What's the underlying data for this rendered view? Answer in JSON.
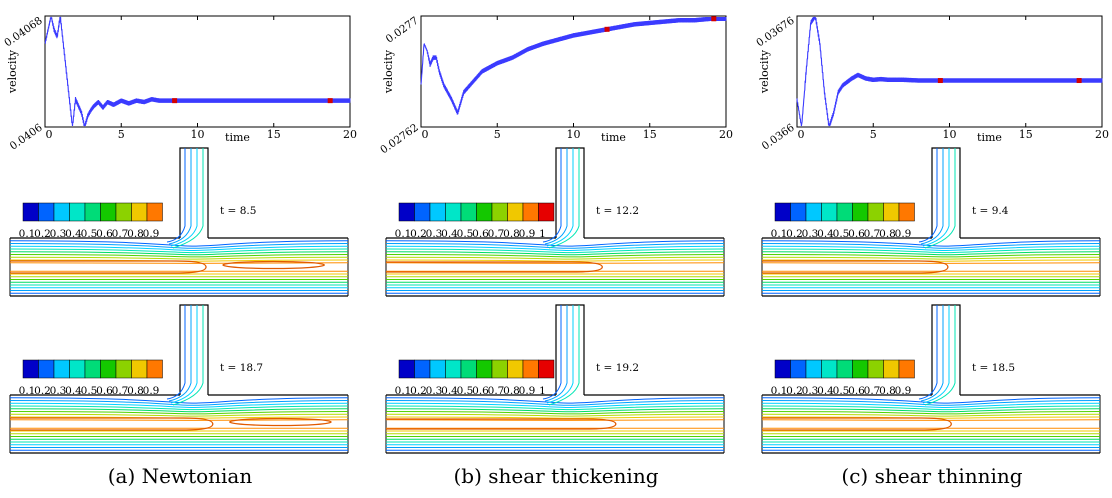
{
  "chart_data": [
    {
      "type": "line",
      "panel": "a",
      "caption": "(a) Newtonian",
      "xlabel": "time",
      "ylabel": "velocity",
      "xlim": [
        0,
        20
      ],
      "ylim": [
        0.0406,
        0.04068
      ],
      "xticks": [
        0,
        5,
        10,
        15,
        20
      ],
      "ytick_labels": [
        "0.04068",
        "0.0406"
      ],
      "series": [
        {
          "x": [
            0,
            0.2,
            0.4,
            0.6,
            0.8,
            1.0,
            1.2,
            1.4,
            1.6,
            1.8,
            2.0,
            2.2,
            2.4,
            2.6,
            2.8,
            3.0,
            3.2,
            3.5,
            3.8,
            4.1,
            4.5,
            5.0,
            5.5,
            6.0,
            6.5,
            7.0,
            7.5,
            8.0,
            9.0,
            10,
            12,
            14,
            16,
            18,
            20
          ],
          "y": [
            0.04066,
            0.04067,
            0.04068,
            0.04067,
            0.040665,
            0.04068,
            0.04066,
            0.04064,
            0.04062,
            0.0406,
            0.04062,
            0.040615,
            0.04061,
            0.0406,
            0.040608,
            0.040612,
            0.040615,
            0.040618,
            0.040614,
            0.040618,
            0.040616,
            0.040619,
            0.040617,
            0.040619,
            0.040618,
            0.04062,
            0.040619,
            0.040619,
            0.040619,
            0.040619,
            0.040619,
            0.040619,
            0.040619,
            0.040619,
            0.040619
          ]
        }
      ],
      "markers": [
        {
          "x": 8.5
        },
        {
          "x": 18.7
        }
      ],
      "snapshots": [
        {
          "t_label": "t = 8.5",
          "scale": [
            "0.1",
            "0.2",
            "0.3",
            "0.4",
            "0.5",
            "0.6",
            "0.7",
            "0.8",
            "0.9"
          ],
          "loops": [
            {
              "type": "left",
              "x_end": 0.58,
              "dy": 6
            },
            {
              "type": "right",
              "x0": 0.63,
              "x1": 0.93,
              "dy": 5
            }
          ]
        },
        {
          "t_label": "t = 18.7",
          "scale": [
            "0.1",
            "0.2",
            "0.3",
            "0.4",
            "0.5",
            "0.6",
            "0.7",
            "0.8",
            "0.9"
          ],
          "loops": [
            {
              "type": "left",
              "x_end": 0.6,
              "dy": 6
            },
            {
              "type": "right",
              "x0": 0.65,
              "x1": 0.95,
              "dy": 5
            }
          ]
        }
      ]
    },
    {
      "type": "line",
      "panel": "b",
      "caption": "(b) shear thickening",
      "xlabel": "time",
      "ylabel": "velocity",
      "xlim": [
        0,
        20
      ],
      "ylim": [
        0.02762,
        0.0277
      ],
      "xticks": [
        0,
        5,
        10,
        15,
        20
      ],
      "ytick_labels": [
        "0.0277",
        "0.02762"
      ],
      "series": [
        {
          "x": [
            0,
            0.2,
            0.4,
            0.6,
            0.8,
            1.0,
            1.2,
            1.5,
            2.0,
            2.4,
            2.8,
            3.2,
            4.0,
            5.0,
            6.0,
            7.0,
            8.0,
            9.0,
            10,
            11,
            12,
            13,
            14,
            15,
            16,
            17,
            18,
            19,
            20
          ],
          "y": [
            0.02765,
            0.02768,
            0.027675,
            0.027665,
            0.02767,
            0.02767,
            0.02766,
            0.02765,
            0.02764,
            0.02763,
            0.027645,
            0.02765,
            0.02766,
            0.027666,
            0.02767,
            0.027676,
            0.02768,
            0.027683,
            0.027686,
            0.027688,
            0.02769,
            0.027692,
            0.027694,
            0.027695,
            0.027696,
            0.027697,
            0.027697,
            0.027698,
            0.027698
          ]
        }
      ],
      "markers": [
        {
          "x": 12.2
        },
        {
          "x": 19.2
        }
      ],
      "snapshots": [
        {
          "t_label": "t = 12.2",
          "scale": [
            "0.1",
            "0.2",
            "0.3",
            "0.4",
            "0.5",
            "0.6",
            "0.7",
            "0.8",
            "0.9",
            "1"
          ],
          "loops": [
            {
              "type": "left",
              "x_end": 0.64,
              "dy": 5
            }
          ]
        },
        {
          "t_label": "t = 19.2",
          "scale": [
            "0.1",
            "0.2",
            "0.3",
            "0.4",
            "0.5",
            "0.6",
            "0.7",
            "0.8",
            "0.9",
            "1"
          ],
          "loops": [
            {
              "type": "left",
              "x_end": 0.68,
              "dy": 5
            }
          ]
        }
      ]
    },
    {
      "type": "line",
      "panel": "c",
      "caption": "(c) shear thinning",
      "xlabel": "time",
      "ylabel": "velocity",
      "xlim": [
        0,
        20
      ],
      "ylim": [
        0.0366,
        0.03676
      ],
      "xticks": [
        0,
        5,
        10,
        15,
        20
      ],
      "ytick_labels": [
        "0.03676",
        "0.0366"
      ],
      "series": [
        {
          "x": [
            0,
            0.3,
            0.6,
            0.9,
            1.2,
            1.5,
            1.8,
            2.1,
            2.4,
            2.7,
            3.0,
            3.3,
            3.6,
            4.0,
            4.5,
            5.0,
            5.5,
            6.0,
            7.0,
            8.0,
            10,
            12,
            14,
            16,
            18,
            20
          ],
          "y": [
            0.03664,
            0.0366,
            0.03668,
            0.03675,
            0.03676,
            0.03672,
            0.03665,
            0.0366,
            0.03662,
            0.03665,
            0.03666,
            0.036665,
            0.03667,
            0.036675,
            0.03667,
            0.036668,
            0.036669,
            0.036668,
            0.036668,
            0.036667,
            0.036667,
            0.036667,
            0.036667,
            0.036667,
            0.036667,
            0.036667
          ]
        }
      ],
      "markers": [
        {
          "x": 9.4
        },
        {
          "x": 18.5
        }
      ],
      "snapshots": [
        {
          "t_label": "t = 9.4",
          "scale": [
            "0.1",
            "0.2",
            "0.3",
            "0.4",
            "0.5",
            "0.6",
            "0.7",
            "0.8",
            "0.9"
          ],
          "loops": [
            {
              "type": "left",
              "x_end": 0.55,
              "dy": 6
            }
          ]
        },
        {
          "t_label": "t = 18.5",
          "scale": [
            "0.1",
            "0.2",
            "0.3",
            "0.4",
            "0.5",
            "0.6",
            "0.7",
            "0.8",
            "0.9"
          ],
          "loops": [
            {
              "type": "left",
              "x_end": 0.56,
              "dy": 6
            }
          ]
        }
      ]
    }
  ],
  "colors": {
    "series": "#3b3bff",
    "marker": "#d40000",
    "colormap": [
      "#0000c8",
      "#0064ff",
      "#00c8ff",
      "#00e6c8",
      "#00dc78",
      "#14c800",
      "#8cd200",
      "#f0c800",
      "#ff7800",
      "#e60000"
    ],
    "contours": [
      "#0064ff",
      "#00a0ff",
      "#00d2ff",
      "#00e6b4",
      "#00dc64",
      "#50d200",
      "#b4dc00",
      "#f0c800",
      "#ff8c00",
      "#ff5a00"
    ],
    "frame": "#000000"
  }
}
